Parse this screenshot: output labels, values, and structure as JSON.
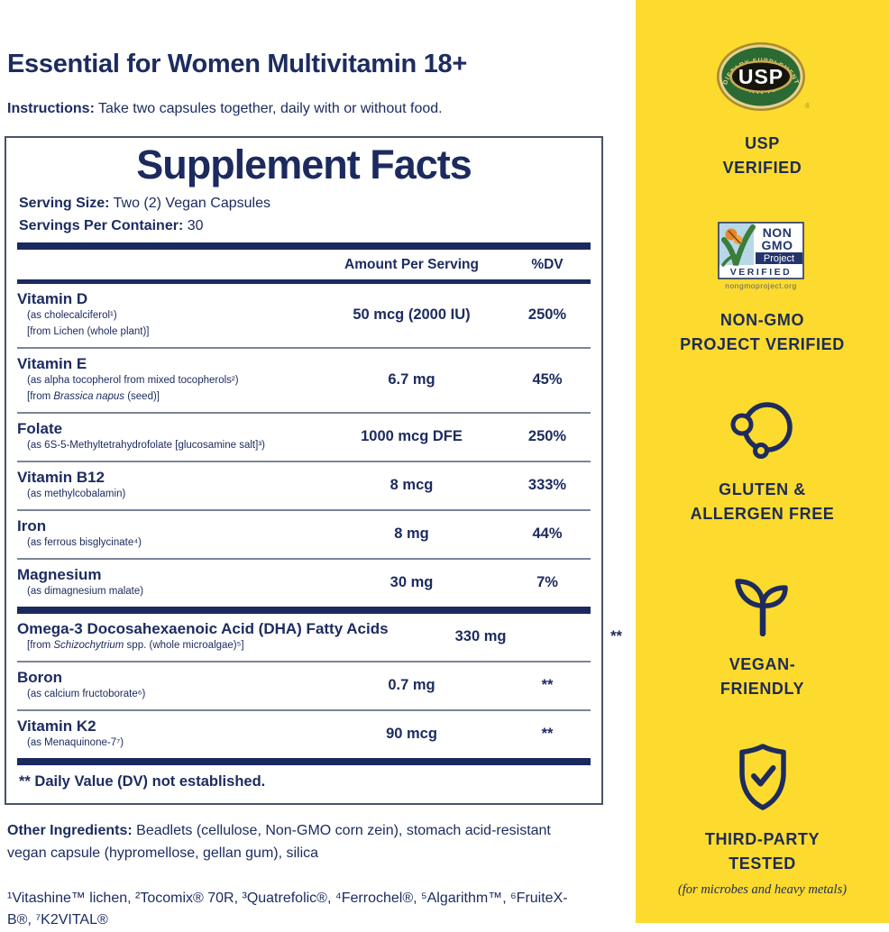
{
  "page": {
    "title": "Essential for Women Multivitamin 18+",
    "instructions_label": "Instructions:",
    "instructions_text": "Take two capsules together, daily with or without food."
  },
  "supplement_facts": {
    "heading": "Supplement Facts",
    "serving_size_label": "Serving Size:",
    "serving_size_value": "Two (2) Vegan Capsules",
    "servings_per_container_label": "Servings Per Container:",
    "servings_per_container_value": "30",
    "columns": {
      "amount": "Amount Per Serving",
      "dv": "%DV"
    },
    "rows": [
      {
        "name": "Vitamin D",
        "subs": [
          [
            {
              "t": "(as cholecalciferol¹)"
            }
          ],
          [
            {
              "t": "[from Lichen (whole plant)]"
            }
          ]
        ],
        "amount": "50 mcg (2000 IU)",
        "dv": "250%"
      },
      {
        "name": "Vitamin E",
        "subs": [
          [
            {
              "t": "(as alpha tocopherol from mixed tocopherols²)"
            }
          ],
          [
            {
              "t": "[from "
            },
            {
              "t": "Brassica napus",
              "i": true
            },
            {
              "t": " (seed)]"
            }
          ]
        ],
        "amount": "6.7 mg",
        "dv": "45%"
      },
      {
        "name": "Folate",
        "subs": [
          [
            {
              "t": "(as 6S-5-Methyltetrahydrofolate [glucosamine salt]³)"
            }
          ]
        ],
        "amount": "1000 mcg DFE",
        "dv": "250%"
      },
      {
        "name": "Vitamin B12",
        "subs": [
          [
            {
              "t": "(as methylcobalamin)"
            }
          ]
        ],
        "amount": "8 mcg",
        "dv": "333%"
      },
      {
        "name": "Iron",
        "subs": [
          [
            {
              "t": "(as ferrous bisglycinate⁴)"
            }
          ]
        ],
        "amount": "8 mg",
        "dv": "44%"
      },
      {
        "name": "Magnesium",
        "subs": [
          [
            {
              "t": "(as dimagnesium malate)"
            }
          ]
        ],
        "amount": "30 mg",
        "dv": "7%",
        "thick_after": true
      },
      {
        "name": "Omega-3 Docosahexaenoic Acid (DHA) Fatty Acids",
        "subs": [
          [
            {
              "t": "[from "
            },
            {
              "t": "Schizochytrium",
              "i": true
            },
            {
              "t": " spp. (whole microalgae)⁵]"
            }
          ]
        ],
        "amount": "330 mg",
        "dv": "**"
      },
      {
        "name": "Boron",
        "subs": [
          [
            {
              "t": "(as calcium fructoborate⁶)"
            }
          ]
        ],
        "amount": "0.7 mg",
        "dv": "**"
      },
      {
        "name": "Vitamin K2",
        "subs": [
          [
            {
              "t": "(as Menaquinone-7⁷)"
            }
          ]
        ],
        "amount": "90 mcg",
        "dv": "**",
        "thick_after": true
      }
    ],
    "dv_footnote": "** Daily Value (DV) not established."
  },
  "other_ingredients": {
    "label": "Other Ingredients:",
    "text": "Beadlets (cellulose, Non-GMO corn zein), stomach acid-resistant vegan capsule (hypromellose, gellan gum), silica"
  },
  "footnotes": {
    "text": "¹Vitashine™ lichen, ²Tocomix® 70R, ³Quatrefolic®, ⁴Ferrochel®, ⁵Algarithm™, ⁶FruiteX-B®, ⁷K2VITAL®"
  },
  "badges": {
    "usp": {
      "line1": "USP",
      "line2": "VERIFIED",
      "seal_top": "DIETARY SUPPLEMENT",
      "seal_center": "USP",
      "seal_bottom": "VERIFIED",
      "seal_reg": "®"
    },
    "nongmo": {
      "line1": "NON-GMO",
      "line2": "PROJECT VERIFIED",
      "logo_non": "NON",
      "logo_gmo": "GMO",
      "logo_project": "Project",
      "logo_verified": "V E R I F I E D",
      "logo_url": "nongmoproject.org"
    },
    "gluten": {
      "line1": "GLUTEN &",
      "line2": "ALLERGEN FREE"
    },
    "vegan": {
      "line1": "VEGAN-",
      "line2": "FRIENDLY"
    },
    "tested": {
      "line1": "THIRD-PARTY",
      "line2": "TESTED",
      "sub": "(for microbes and heavy metals)"
    }
  },
  "colors": {
    "navy_text": "#1d2c60",
    "bar_navy": "#1b2a5e",
    "separator_gray": "#7c8496",
    "sidebar_yellow": "#fcda2e",
    "usp_gold": "#c3a145",
    "usp_green": "#2c6a33",
    "nongmo_sky": "#b8d8e8",
    "nongmo_navy": "#24356b",
    "butterfly_orange": "#e8862c",
    "check_green": "#3a7d3c"
  }
}
